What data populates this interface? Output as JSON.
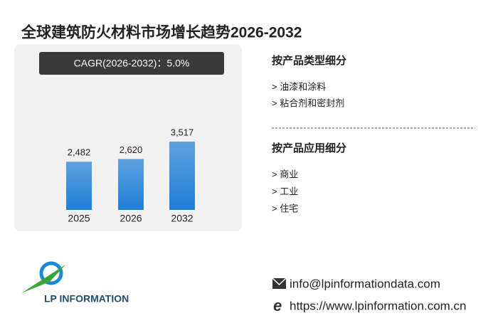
{
  "chart_data": {
    "type": "bar",
    "title": "全球建筑防火材料市场增长趋势2026-2032",
    "subtitle": "CAGR(2026-2032)：5.0%",
    "categories": [
      "2025",
      "2026",
      "2032"
    ],
    "values": [
      2482,
      2620,
      3517
    ],
    "value_labels": [
      "2,482",
      "2,620",
      "3,517"
    ],
    "color": "#1f7fd6"
  },
  "segments": {
    "type_title": "按产品类型细分",
    "type_items": [
      "> 油漆和涂料",
      "> 粘合剂和密封剂"
    ],
    "application_title": "按产品应用细分",
    "application_items": [
      "> 商业",
      "> 工业",
      "> 住宅"
    ]
  },
  "contact": {
    "email": "info@lpinformationdata.com",
    "website": "https://www.lpinformation.com.cn"
  },
  "logo": "LP INFORMATION"
}
